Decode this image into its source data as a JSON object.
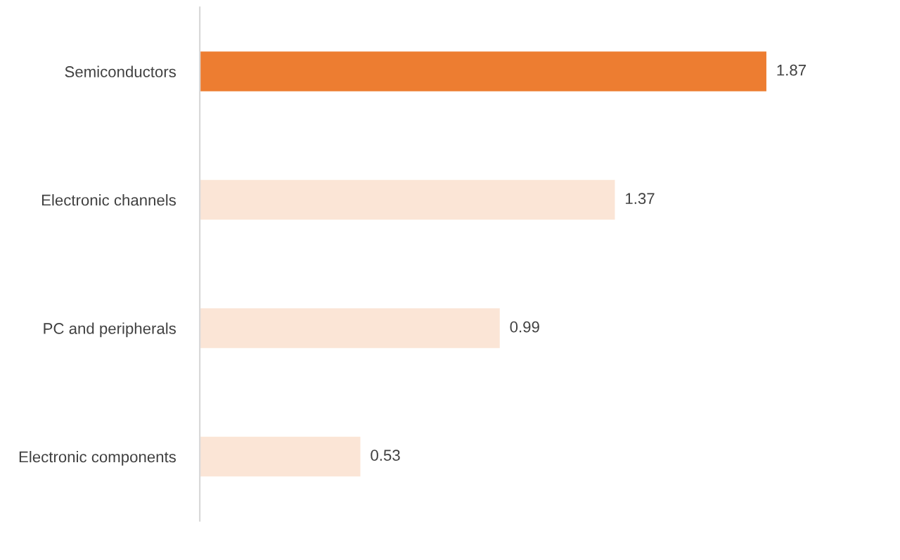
{
  "chart_data": {
    "type": "bar",
    "orientation": "horizontal",
    "categories": [
      "Semiconductors",
      "Electronic channels",
      "PC and peripherals",
      "Electronic components"
    ],
    "values": [
      1.87,
      1.37,
      0.99,
      0.53
    ],
    "colors": [
      "#ed7d31",
      "#fbe5d6",
      "#fbe5d6",
      "#fbe5d6"
    ],
    "tick_labels": "y",
    "data_labels": true,
    "grid": false,
    "legend": false
  }
}
